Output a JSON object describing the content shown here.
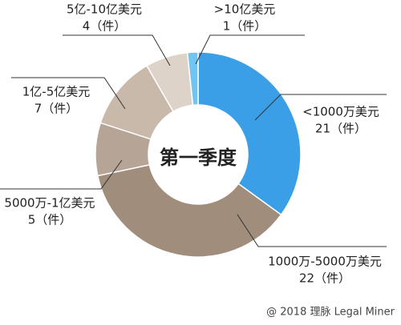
{
  "chart_data": {
    "type": "donut",
    "center_label": "第一季度",
    "categories": [
      "<1000万美元",
      "1000万-5000万美元",
      "5000万-1亿美元",
      "1亿-5亿美元",
      "5亿-10亿美元",
      ">10亿美元"
    ],
    "values": [
      21,
      22,
      5,
      7,
      4,
      1
    ],
    "value_labels": [
      "21（件）",
      "22（件）",
      "5（件）",
      "7（件）",
      "4（件）",
      "1（件）"
    ],
    "colors": [
      "#3a9fe6",
      "#a18d7b",
      "#b6a596",
      "#c9b9ab",
      "#ded3c9",
      "#6fc6f2"
    ]
  },
  "footer": "@ 2018 理脉 Legal Miner"
}
